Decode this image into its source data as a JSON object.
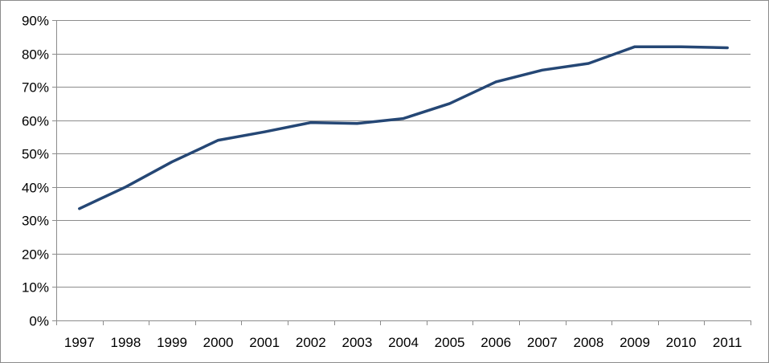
{
  "chart_data": {
    "type": "line",
    "title": "",
    "xlabel": "",
    "ylabel": "",
    "categories": [
      "1997",
      "1998",
      "1999",
      "2000",
      "2001",
      "2002",
      "2003",
      "2004",
      "2005",
      "2006",
      "2007",
      "2008",
      "2009",
      "2010",
      "2011"
    ],
    "series": [
      {
        "values": [
          33.5,
          40.0,
          47.5,
          54.0,
          56.5,
          59.3,
          59.0,
          60.5,
          65.0,
          71.5,
          75.0,
          77.0,
          82.0,
          82.0,
          81.7
        ],
        "color": "#254775"
      }
    ],
    "ylim": [
      0,
      90
    ],
    "yticks": [
      0,
      10,
      20,
      30,
      40,
      50,
      60,
      70,
      80,
      90
    ],
    "ytick_labels": [
      "0%",
      "10%",
      "20%",
      "30%",
      "40%",
      "50%",
      "60%",
      "70%",
      "80%",
      "90%"
    ],
    "grid": true,
    "legend": "none"
  }
}
